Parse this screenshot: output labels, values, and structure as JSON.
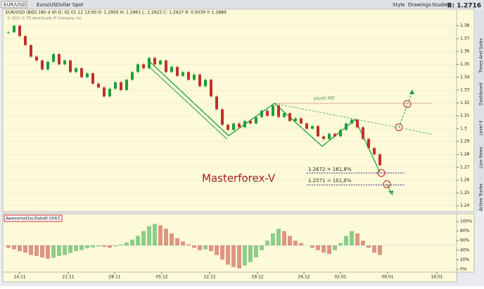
{
  "toolbar": {
    "symbol": "EUR/USD",
    "description": "Euro/USDollar Spot",
    "style": "Style",
    "drawings": "Drawings",
    "studies": "Studies",
    "bid": "B: 1.2716"
  },
  "info": {
    "line": "EUR/USD (BID) 180 d 4h   D: 02.01.12 13:00   O: 1.2955   H: 1.2961   L: 1.2922   C: 1.2927   R: 0.0039   Y: 1.2889",
    "copyright": "© 2011 © TD Ameritrade IP Company, Inc."
  },
  "sidebar": [
    "Active Trader",
    "Live News",
    "Level II",
    "Dashboard",
    "Times And Sales"
  ],
  "annotations": {
    "brand": "Masterforex-V",
    "pivot": "pivot MF",
    "fib1": "1.2672 = 161,8%",
    "fib2": "1.2571 = 161,8%"
  },
  "chart_data": [
    {
      "type": "candle",
      "series": [
        {
          "name": "EUR/USD",
          "values": [
            1.375,
            1.38,
            1.372,
            1.365,
            1.356,
            1.353,
            1.346,
            1.352,
            1.358,
            1.35,
            1.353,
            1.344,
            1.347,
            1.34,
            1.343,
            1.335,
            1.332,
            1.325,
            1.331,
            1.336,
            1.33,
            1.338,
            1.344,
            1.35,
            1.347,
            1.355,
            1.35,
            1.353,
            1.344,
            1.348,
            1.341,
            1.344,
            1.338,
            1.342,
            1.333,
            1.338,
            1.325,
            1.315,
            1.303,
            1.299,
            1.304,
            1.301,
            1.306,
            1.304,
            1.309,
            1.314,
            1.31,
            1.318,
            1.309,
            1.312,
            1.306,
            1.308,
            1.304,
            1.3,
            1.302,
            1.294,
            1.292,
            1.296,
            1.294,
            1.299,
            1.304,
            1.307,
            1.301,
            1.292,
            1.285,
            1.28,
            1.2716
          ]
        }
      ],
      "colors": {
        "up": "#1e9e3a",
        "down": "#c0302a"
      },
      "xlim": [
        -1,
        79.5
      ],
      "xticks": [
        {
          "value": 2,
          "label": "14.11"
        },
        {
          "value": 10.625,
          "label": "21.11"
        },
        {
          "value": 18.875,
          "label": "28.11"
        },
        {
          "value": 27.25,
          "label": "05.12"
        },
        {
          "value": 35.75,
          "label": "12.12"
        },
        {
          "value": 44.25,
          "label": "19.12"
        },
        {
          "value": 52.5,
          "label": "26.12"
        },
        {
          "value": 59,
          "label": "02.01"
        },
        {
          "value": 67.375,
          "label": "09.01"
        },
        {
          "value": 76.125,
          "label": "16.01"
        }
      ],
      "ylim": [
        1.236,
        1.388
      ],
      "yticks": [
        1.24,
        1.25,
        1.26,
        1.27,
        1.28,
        1.29,
        1.3,
        1.31,
        1.32,
        1.33,
        1.34,
        1.35,
        1.36,
        1.37,
        1.38
      ]
    },
    {
      "type": "oscillator",
      "title": "AwesomeOscillator",
      "value_label": "-0.0063",
      "series": [
        {
          "name": "AwesomeOscillator",
          "values": [
            45,
            42,
            38,
            35,
            30,
            28,
            25,
            22,
            24,
            28,
            30,
            34,
            38,
            40,
            44,
            46,
            48,
            47,
            45,
            48,
            52,
            56,
            62,
            70,
            80,
            90,
            95,
            92,
            85,
            75,
            65,
            58,
            52,
            45,
            40,
            42,
            38,
            30,
            20,
            10,
            5,
            2,
            8,
            15,
            25,
            40,
            60,
            75,
            85,
            80,
            70,
            60,
            55,
            50,
            45,
            40,
            35,
            32,
            40,
            55,
            70,
            80,
            75,
            60,
            45,
            35,
            30
          ]
        }
      ],
      "colors": {
        "up": "#1e9e3a",
        "down": "#c0302a"
      },
      "ylim": [
        0,
        100
      ],
      "yticks": [
        {
          "value": 0,
          "label": "0%"
        },
        {
          "value": 20,
          "label": "20%"
        },
        {
          "value": 40,
          "label": "40%"
        },
        {
          "value": 60,
          "label": "60%"
        },
        {
          "value": 80,
          "label": "80%"
        },
        {
          "value": 100,
          "label": "100%"
        }
      ]
    }
  ]
}
